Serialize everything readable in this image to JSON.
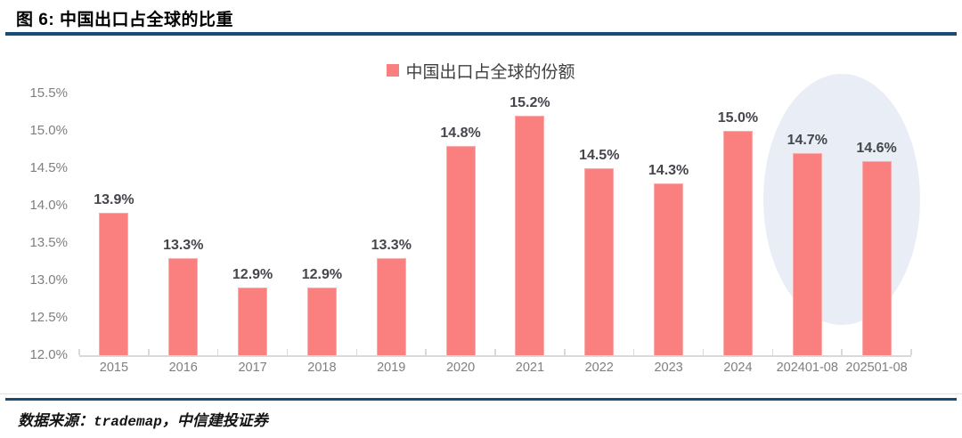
{
  "header": {
    "title": "图 6: 中国出口占全球的比重"
  },
  "chart_data": {
    "type": "bar",
    "title": "中国出口占全球的比重",
    "legend": [
      "中国出口占全球的份额"
    ],
    "legend_position": "top-center",
    "categories": [
      "2015",
      "2016",
      "2017",
      "2018",
      "2019",
      "2020",
      "2021",
      "2022",
      "2023",
      "2024",
      "202401-08",
      "202501-08"
    ],
    "values": [
      13.9,
      13.3,
      12.9,
      12.9,
      13.3,
      14.8,
      15.2,
      14.5,
      14.3,
      15.0,
      14.7,
      14.6
    ],
    "value_labels": [
      "13.9%",
      "13.3%",
      "12.9%",
      "12.9%",
      "13.3%",
      "14.8%",
      "15.2%",
      "14.5%",
      "14.3%",
      "15.0%",
      "14.7%",
      "14.6%"
    ],
    "unit": "%",
    "ylim": [
      12.0,
      15.5
    ],
    "y_ticks": [
      "12.0%",
      "12.5%",
      "13.0%",
      "13.5%",
      "14.0%",
      "14.5%",
      "15.0%",
      "15.5%"
    ],
    "grid": false,
    "xlabel": "",
    "ylabel": "",
    "highlight": {
      "shape": "ellipse",
      "over_categories": [
        "202401-08",
        "202501-08"
      ]
    }
  },
  "footer": {
    "parts": [
      "数据来源：",
      "trademap",
      "，中信建投证券"
    ]
  },
  "colors": {
    "accent_blue": "#1a4b74",
    "bar": "#fa8080",
    "bar_border": "#fcabab",
    "highlight_ellipse": "#e9edf6",
    "axis_text": "#7f7f7f",
    "value_text": "#45454d"
  }
}
